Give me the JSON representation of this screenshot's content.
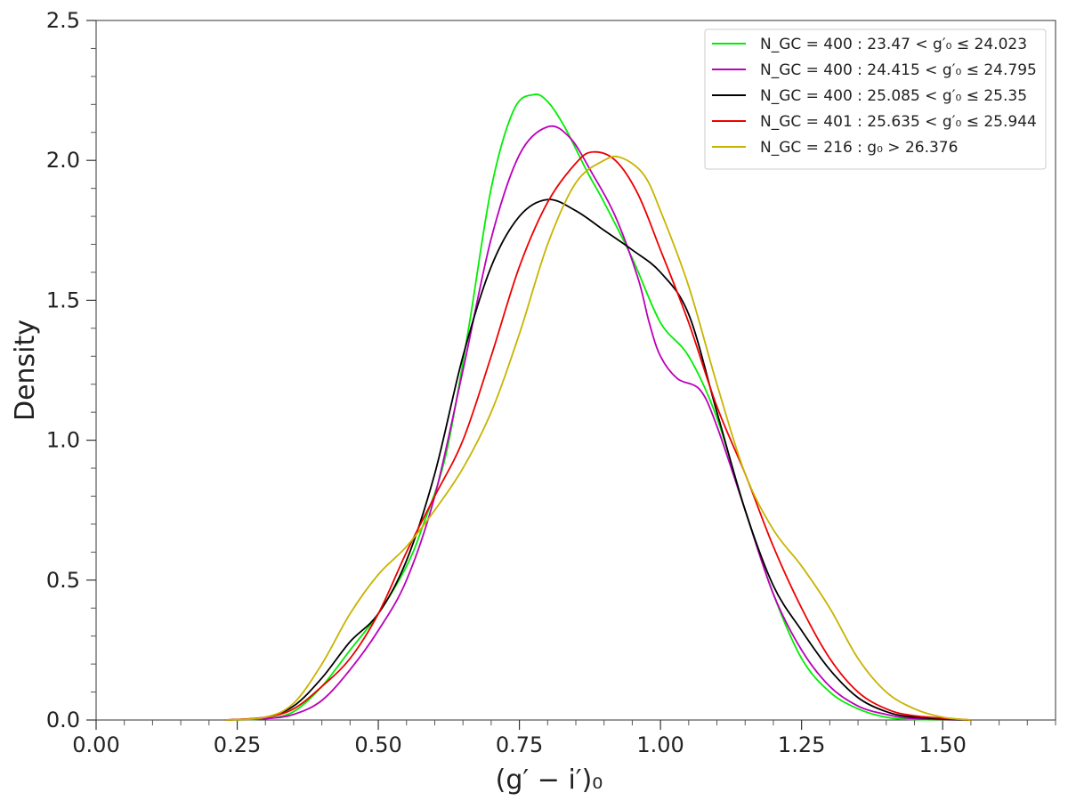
{
  "chart_data": {
    "type": "line",
    "xlabel": "(g′ − i′)₀",
    "ylabel": "Density",
    "xlim": [
      0.0,
      1.7
    ],
    "ylim": [
      0.0,
      2.5
    ],
    "x_ticks": [
      "0.00",
      "0.25",
      "0.50",
      "0.75",
      "1.00",
      "1.25",
      "1.50"
    ],
    "y_ticks": [
      "0.0",
      "0.5",
      "1.0",
      "1.5",
      "2.0",
      "2.5"
    ],
    "grid": false,
    "legend_position": "top-right",
    "series": [
      {
        "name": "N_GC = 400 : 23.47 < g′₀ ≤ 24.023",
        "color": "#00ee00",
        "points": [
          [
            0.23,
            0.0
          ],
          [
            0.3,
            0.005
          ],
          [
            0.35,
            0.03
          ],
          [
            0.4,
            0.12
          ],
          [
            0.45,
            0.25
          ],
          [
            0.5,
            0.38
          ],
          [
            0.55,
            0.55
          ],
          [
            0.58,
            0.7
          ],
          [
            0.62,
            0.95
          ],
          [
            0.66,
            1.4
          ],
          [
            0.7,
            1.9
          ],
          [
            0.74,
            2.18
          ],
          [
            0.775,
            2.235
          ],
          [
            0.8,
            2.21
          ],
          [
            0.83,
            2.12
          ],
          [
            0.87,
            1.96
          ],
          [
            0.9,
            1.85
          ],
          [
            0.95,
            1.65
          ],
          [
            1.0,
            1.42
          ],
          [
            1.05,
            1.3
          ],
          [
            1.1,
            1.08
          ],
          [
            1.15,
            0.75
          ],
          [
            1.2,
            0.45
          ],
          [
            1.25,
            0.22
          ],
          [
            1.3,
            0.1
          ],
          [
            1.35,
            0.04
          ],
          [
            1.4,
            0.01
          ],
          [
            1.45,
            0.002
          ],
          [
            1.55,
            0.0
          ]
        ]
      },
      {
        "name": "N_GC = 400 : 24.415 < g′₀ ≤ 24.795",
        "color": "#bb00bb",
        "points": [
          [
            0.23,
            0.0
          ],
          [
            0.3,
            0.005
          ],
          [
            0.35,
            0.02
          ],
          [
            0.4,
            0.07
          ],
          [
            0.45,
            0.18
          ],
          [
            0.5,
            0.32
          ],
          [
            0.55,
            0.5
          ],
          [
            0.6,
            0.8
          ],
          [
            0.65,
            1.25
          ],
          [
            0.7,
            1.72
          ],
          [
            0.75,
            2.02
          ],
          [
            0.8,
            2.12
          ],
          [
            0.84,
            2.08
          ],
          [
            0.88,
            1.95
          ],
          [
            0.92,
            1.8
          ],
          [
            0.96,
            1.58
          ],
          [
            0.98,
            1.42
          ],
          [
            1.0,
            1.3
          ],
          [
            1.03,
            1.22
          ],
          [
            1.07,
            1.18
          ],
          [
            1.1,
            1.05
          ],
          [
            1.15,
            0.75
          ],
          [
            1.2,
            0.45
          ],
          [
            1.25,
            0.25
          ],
          [
            1.3,
            0.12
          ],
          [
            1.35,
            0.05
          ],
          [
            1.4,
            0.02
          ],
          [
            1.45,
            0.005
          ],
          [
            1.55,
            0.0
          ]
        ]
      },
      {
        "name": "N_GC = 400 : 25.085 < g′₀ ≤ 25.35",
        "color": "#000000",
        "points": [
          [
            0.23,
            0.0
          ],
          [
            0.3,
            0.01
          ],
          [
            0.35,
            0.05
          ],
          [
            0.4,
            0.15
          ],
          [
            0.45,
            0.28
          ],
          [
            0.5,
            0.38
          ],
          [
            0.55,
            0.57
          ],
          [
            0.6,
            0.88
          ],
          [
            0.65,
            1.3
          ],
          [
            0.7,
            1.62
          ],
          [
            0.75,
            1.8
          ],
          [
            0.8,
            1.86
          ],
          [
            0.85,
            1.82
          ],
          [
            0.9,
            1.75
          ],
          [
            0.95,
            1.68
          ],
          [
            1.0,
            1.6
          ],
          [
            1.05,
            1.45
          ],
          [
            1.1,
            1.1
          ],
          [
            1.15,
            0.75
          ],
          [
            1.2,
            0.48
          ],
          [
            1.25,
            0.32
          ],
          [
            1.3,
            0.18
          ],
          [
            1.35,
            0.08
          ],
          [
            1.4,
            0.03
          ],
          [
            1.45,
            0.01
          ],
          [
            1.55,
            0.0
          ]
        ]
      },
      {
        "name": "N_GC = 401 : 25.635 < g′₀ ≤ 25.944",
        "color": "#ee0000",
        "points": [
          [
            0.23,
            0.0
          ],
          [
            0.3,
            0.01
          ],
          [
            0.35,
            0.04
          ],
          [
            0.4,
            0.12
          ],
          [
            0.45,
            0.22
          ],
          [
            0.5,
            0.38
          ],
          [
            0.55,
            0.6
          ],
          [
            0.6,
            0.8
          ],
          [
            0.65,
            1.0
          ],
          [
            0.7,
            1.3
          ],
          [
            0.75,
            1.62
          ],
          [
            0.8,
            1.85
          ],
          [
            0.85,
            1.99
          ],
          [
            0.88,
            2.03
          ],
          [
            0.92,
            2.0
          ],
          [
            0.96,
            1.88
          ],
          [
            1.0,
            1.68
          ],
          [
            1.05,
            1.42
          ],
          [
            1.1,
            1.12
          ],
          [
            1.15,
            0.88
          ],
          [
            1.2,
            0.62
          ],
          [
            1.25,
            0.4
          ],
          [
            1.3,
            0.22
          ],
          [
            1.35,
            0.1
          ],
          [
            1.4,
            0.04
          ],
          [
            1.45,
            0.015
          ],
          [
            1.55,
            0.0
          ]
        ]
      },
      {
        "name": "N_GC = 216 : g₀ > 26.376",
        "color": "#c8b400",
        "points": [
          [
            0.23,
            0.0
          ],
          [
            0.3,
            0.01
          ],
          [
            0.35,
            0.06
          ],
          [
            0.4,
            0.2
          ],
          [
            0.45,
            0.38
          ],
          [
            0.5,
            0.52
          ],
          [
            0.55,
            0.62
          ],
          [
            0.6,
            0.75
          ],
          [
            0.65,
            0.9
          ],
          [
            0.7,
            1.1
          ],
          [
            0.75,
            1.38
          ],
          [
            0.8,
            1.7
          ],
          [
            0.85,
            1.92
          ],
          [
            0.9,
            2.0
          ],
          [
            0.93,
            2.01
          ],
          [
            0.97,
            1.95
          ],
          [
            1.0,
            1.82
          ],
          [
            1.05,
            1.55
          ],
          [
            1.1,
            1.2
          ],
          [
            1.15,
            0.88
          ],
          [
            1.2,
            0.68
          ],
          [
            1.25,
            0.55
          ],
          [
            1.3,
            0.4
          ],
          [
            1.35,
            0.22
          ],
          [
            1.4,
            0.1
          ],
          [
            1.45,
            0.04
          ],
          [
            1.5,
            0.01
          ],
          [
            1.55,
            0.0
          ]
        ]
      }
    ]
  }
}
